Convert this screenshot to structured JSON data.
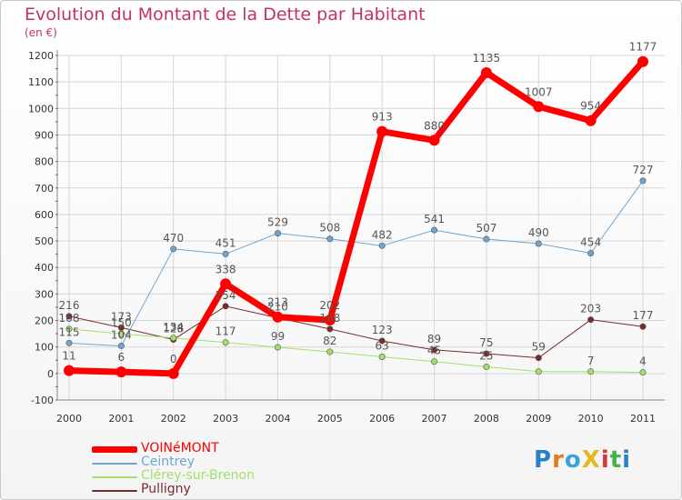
{
  "title": "Evolution du Montant de la Dette par Habitant",
  "unit": "(en €)",
  "brand": "ProXiti",
  "chart_data": {
    "type": "line",
    "x": [
      "2000",
      "2001",
      "2002",
      "2003",
      "2004",
      "2005",
      "2006",
      "2007",
      "2008",
      "2009",
      "2010",
      "2011"
    ],
    "ylim": [
      -100,
      1200
    ],
    "yticks": [
      -100,
      0,
      100,
      200,
      300,
      400,
      500,
      600,
      700,
      800,
      900,
      1000,
      1100,
      1200
    ],
    "grid": true,
    "legend_position": "bottom-left",
    "series": [
      {
        "name": "VOINéMONT",
        "color": "#ff0000",
        "width": 7,
        "values": [
          11,
          6,
          0,
          338,
          213,
          202,
          913,
          880,
          1135,
          1007,
          954,
          1177
        ],
        "labels": [
          "11",
          "6",
          "0",
          "338",
          "213",
          "202",
          "913",
          "880",
          "1135",
          "1007",
          "954",
          "1177"
        ]
      },
      {
        "name": "Ceintrey",
        "color": "#6ea6d3",
        "width": 1,
        "values": [
          115,
          104,
          470,
          451,
          529,
          508,
          482,
          541,
          507,
          490,
          454,
          727
        ],
        "labels": [
          "115",
          "104",
          "470",
          "451",
          "529",
          "508",
          "482",
          "541",
          "507",
          "490",
          "454",
          "727"
        ]
      },
      {
        "name": "Clérey-sur-Brenon",
        "color": "#a3e06b",
        "width": 1,
        "values": [
          168,
          150,
          134,
          117,
          99,
          82,
          63,
          45,
          25,
          7,
          7,
          4
        ],
        "labels": [
          "168",
          "150",
          "134",
          "117",
          "99",
          "82",
          "63",
          "45",
          "25",
          "",
          "7",
          "4"
        ]
      },
      {
        "name": "Pulligny",
        "color": "#7a2a2a",
        "width": 1,
        "values": [
          216,
          173,
          128,
          254,
          210,
          168,
          123,
          89,
          75,
          59,
          203,
          177
        ],
        "labels": [
          "216",
          "173",
          "128",
          "254",
          "210",
          "168",
          "123",
          "89",
          "75",
          "59",
          "203",
          "177"
        ]
      }
    ]
  }
}
